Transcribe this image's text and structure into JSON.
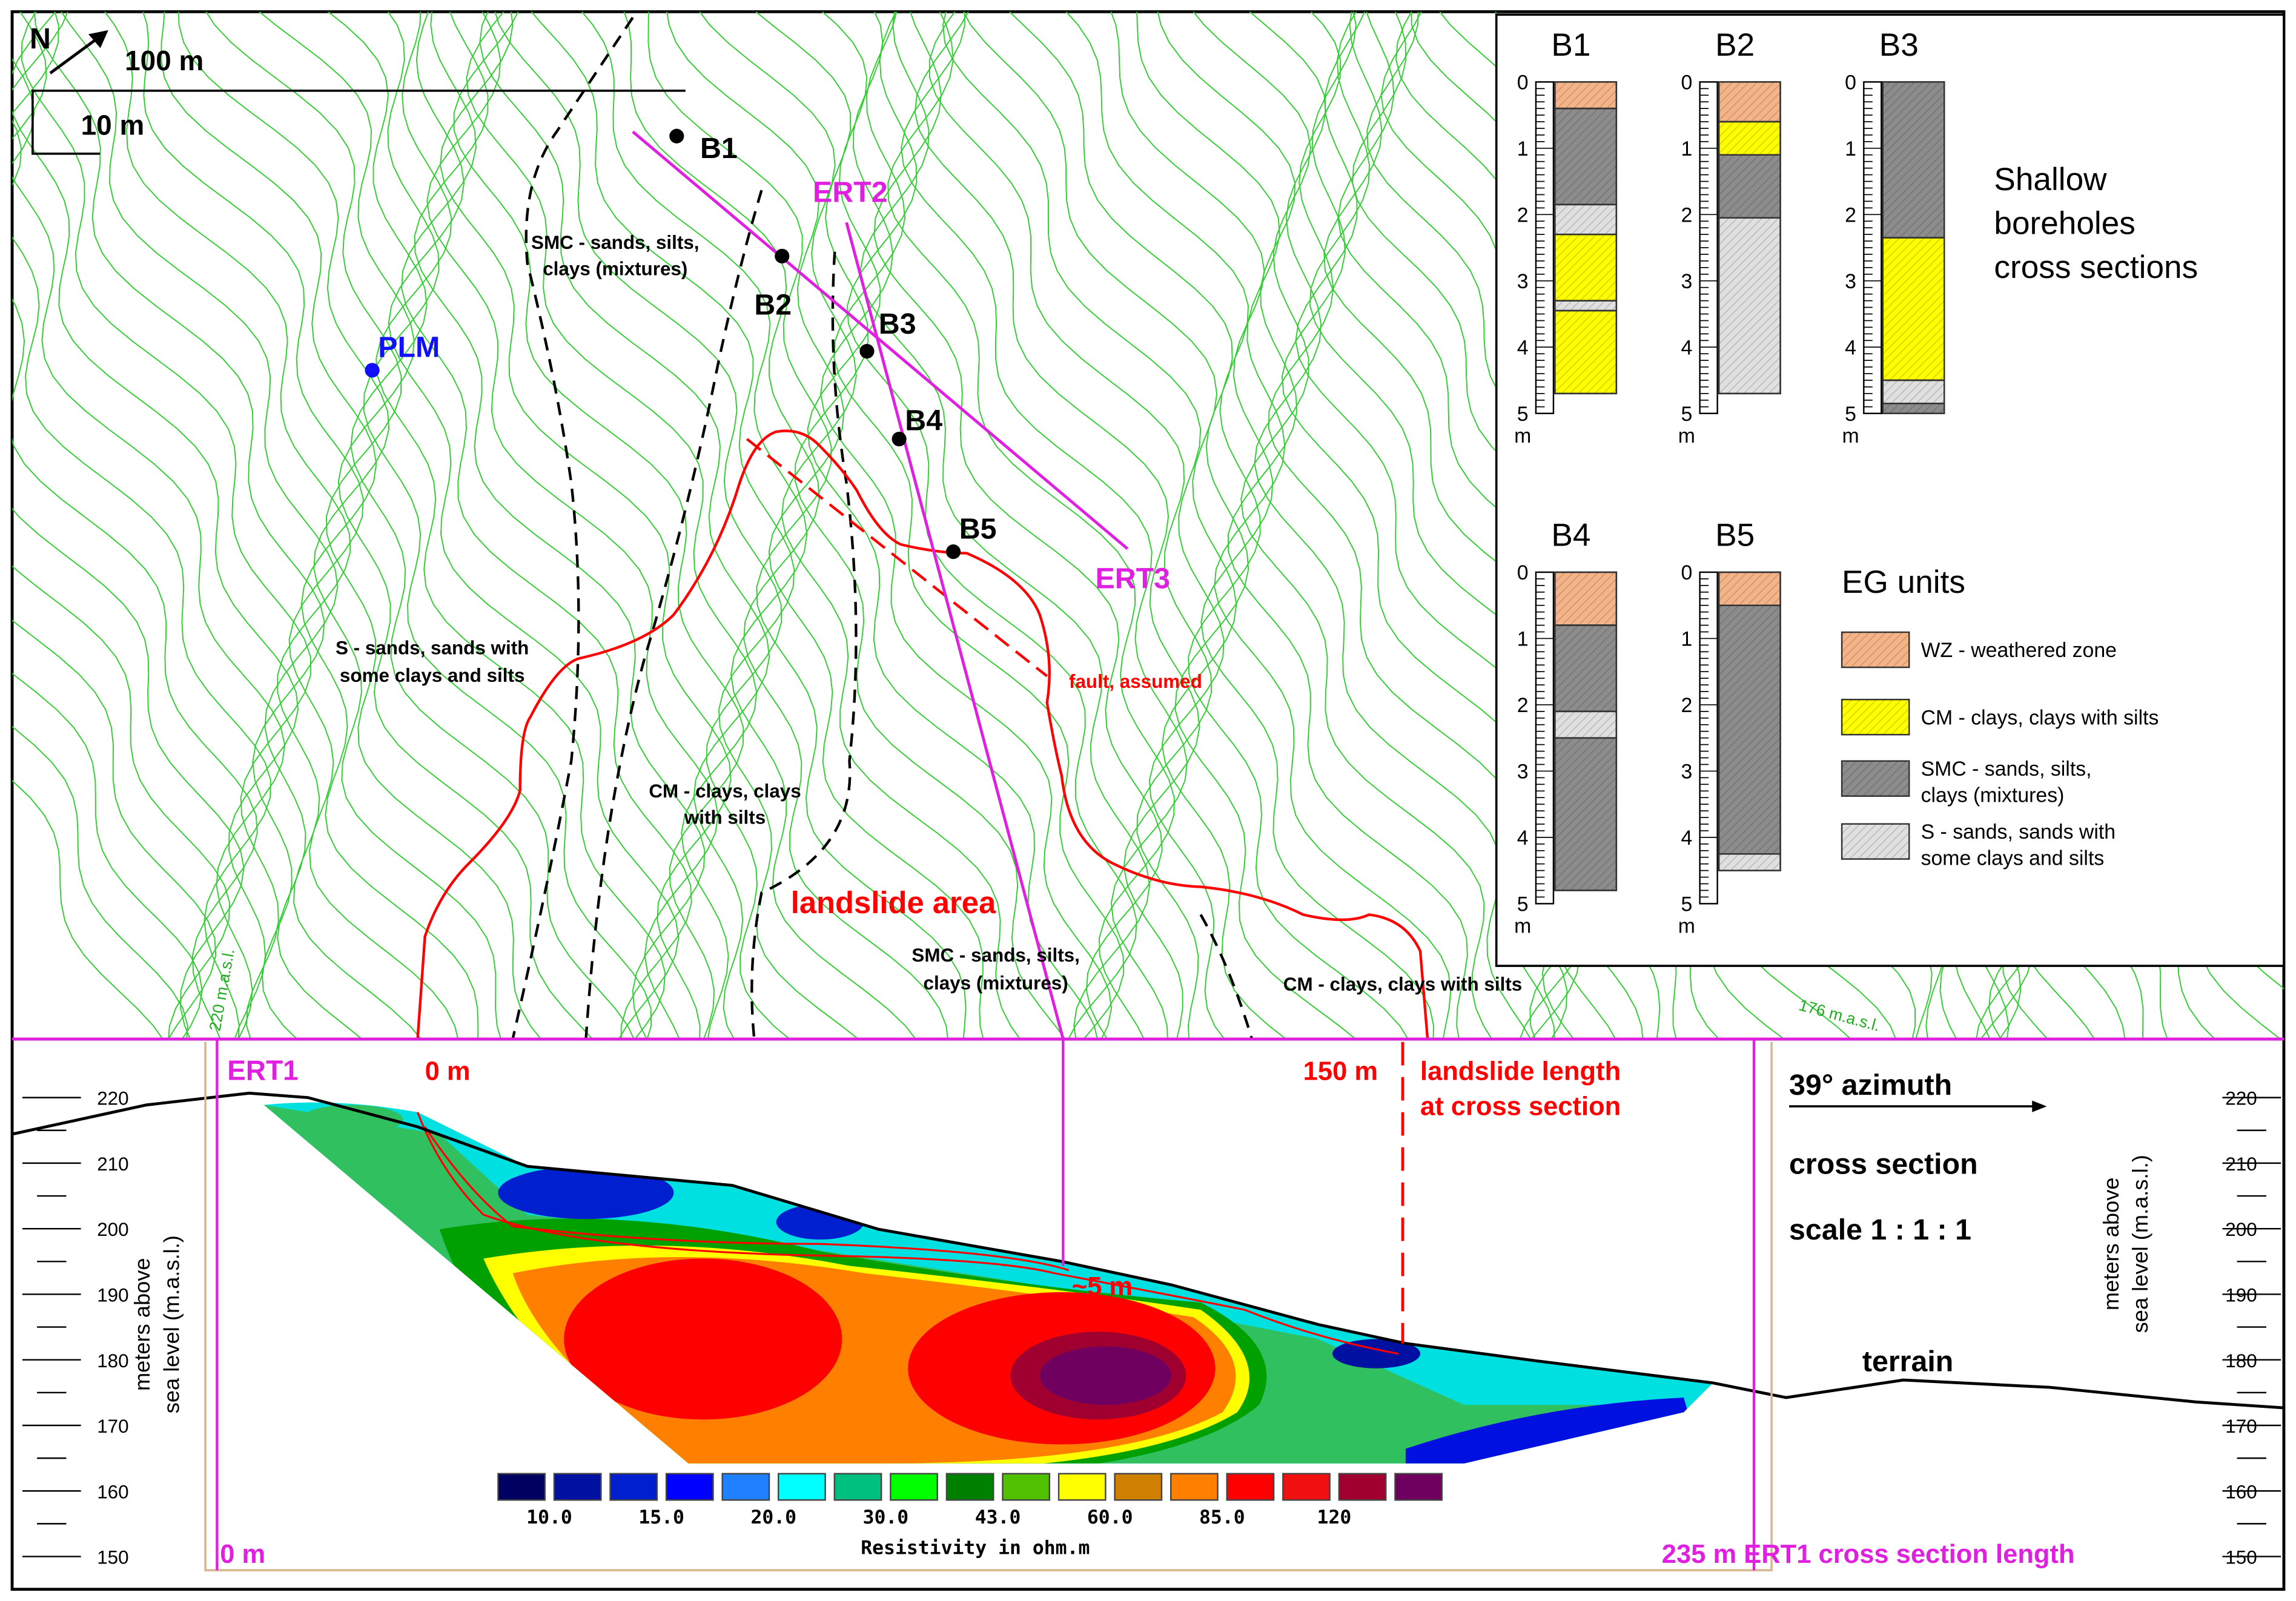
{
  "map": {
    "north": "N",
    "scale_horizontal": "100 m",
    "scale_vertical": "10 m",
    "boreholes": [
      "B1",
      "B2",
      "B3",
      "B4",
      "B5"
    ],
    "plm": "PLM",
    "ert2": "ERT2",
    "ert3": "ERT3",
    "smc_top_1": "SMC - sands, silts,",
    "smc_top_2": "clays (mixtures)",
    "s_1": "S - sands, sands with",
    "s_2": "some clays and silts",
    "cm_1": "CM - clays, clays",
    "cm_2": "with silts",
    "landslide": "landslide area",
    "smc_bot_1": "SMC - sands, silts,",
    "smc_bot_2": "clays (mixtures)",
    "cm_right": "CM - clays, clays with silts",
    "fault": "fault, assumed",
    "contour_220": "220 m.a.s.l.",
    "contour_176": "176 m.a.s.l.",
    "colors": {
      "contour": "#33cc33",
      "ert": "#e020e0",
      "landslide": "#ff0000",
      "plm": "#1010ff"
    }
  },
  "boreholes_panel": {
    "title_1": "Shallow",
    "title_2": "boreholes",
    "title_3": "cross sections",
    "depth_unit": "m",
    "depth_ticks": [
      "0",
      "1",
      "2",
      "3",
      "4",
      "5"
    ],
    "boreholes": [
      {
        "name": "B1",
        "layers": [
          [
            "WZ",
            0,
            0.4
          ],
          [
            "SMC",
            0.4,
            1.85
          ],
          [
            "S",
            1.85,
            2.3
          ],
          [
            "CM",
            2.3,
            3.3
          ],
          [
            "S",
            3.3,
            3.45
          ],
          [
            "CM",
            3.45,
            4.7
          ]
        ]
      },
      {
        "name": "B2",
        "layers": [
          [
            "WZ",
            0,
            0.6
          ],
          [
            "CM",
            0.6,
            1.1
          ],
          [
            "SMC",
            1.1,
            2.05
          ],
          [
            "S",
            2.05,
            4.7
          ]
        ]
      },
      {
        "name": "B3",
        "layers": [
          [
            "SMC",
            0,
            2.35
          ],
          [
            "CM",
            2.35,
            4.5
          ],
          [
            "S",
            4.5,
            4.85
          ],
          [
            "SMC",
            4.85,
            5.0
          ]
        ]
      },
      {
        "name": "B4",
        "layers": [
          [
            "WZ",
            0,
            0.8
          ],
          [
            "SMC",
            0.8,
            2.1
          ],
          [
            "S",
            2.1,
            2.5
          ],
          [
            "SMC",
            2.5,
            4.8
          ]
        ]
      },
      {
        "name": "B5",
        "layers": [
          [
            "WZ",
            0,
            0.5
          ],
          [
            "SMC",
            0.5,
            4.25
          ],
          [
            "S",
            4.25,
            4.5
          ]
        ]
      }
    ],
    "legend_title": "EG units",
    "legend": [
      {
        "code": "WZ",
        "lines": [
          "WZ - weathered zone"
        ],
        "color": "#f5b487"
      },
      {
        "code": "CM",
        "lines": [
          "CM - clays, clays with silts"
        ],
        "color": "#ffff00"
      },
      {
        "code": "SMC",
        "lines": [
          "SMC - sands, silts,",
          "clays (mixtures)"
        ],
        "color": "#8c8c8c"
      },
      {
        "code": "S",
        "lines": [
          "S - sands, sands with",
          "some clays and silts"
        ],
        "color": "#e0e0e0"
      }
    ]
  },
  "section": {
    "ert1": "ERT1",
    "start_red": "0 m",
    "end_red": "150 m",
    "landslide_length_1": "landslide length",
    "landslide_length_2": "at cross section",
    "depth_note": "~5 m",
    "start_magenta": "0 m",
    "length_note": "235 m ERT1 cross section length",
    "azimuth": "39° azimuth",
    "cross_section": "cross section",
    "scale": "scale  1 : 1 : 1",
    "terrain": "terrain",
    "axis_label_1": "meters above",
    "axis_label_2": "sea level (m.a.s.l.)",
    "axis_ticks": [
      "220",
      "210",
      "200",
      "190",
      "180",
      "170",
      "160",
      "150"
    ]
  },
  "colorbar": {
    "title": "Resistivity in ohm.m",
    "colors": [
      "#000060",
      "#0010a0",
      "#0020d0",
      "#0000ff",
      "#2080ff",
      "#00ffff",
      "#00c080",
      "#00ff00",
      "#008000",
      "#50c000",
      "#ffff00",
      "#d08000",
      "#ff8000",
      "#ff0000",
      "#f01010",
      "#a00030",
      "#700060"
    ],
    "labels": [
      "10.0",
      "15.0",
      "20.0",
      "30.0",
      "43.0",
      "60.0",
      "85.0",
      "120"
    ]
  }
}
